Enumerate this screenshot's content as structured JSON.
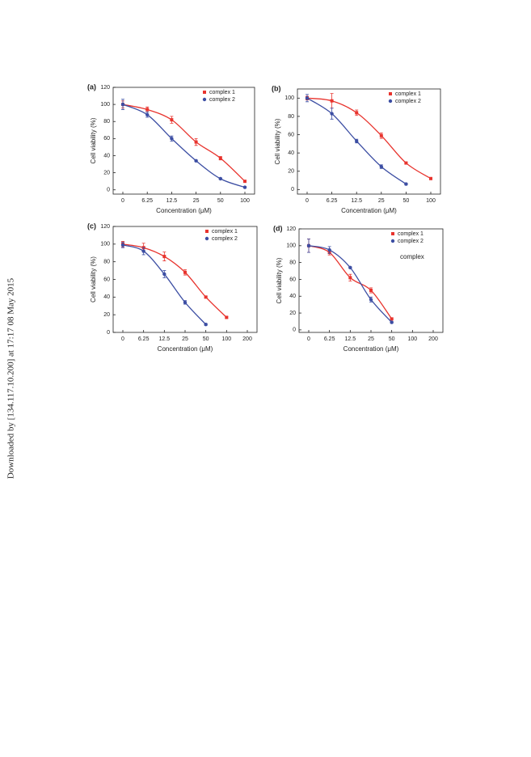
{
  "watermark": "Downloaded by [134.117.10.200] at 17:17 08 May 2015",
  "chart_data": [
    {
      "type": "line",
      "title": "(a)",
      "xlabel": "Concentration (μM)",
      "ylabel": "Cell viability (%)",
      "categories": [
        "0",
        "6.25",
        "12.5",
        "25",
        "50",
        "100"
      ],
      "ylim": [
        -5,
        120
      ],
      "yticks": [
        0,
        20,
        40,
        60,
        80,
        100,
        120
      ],
      "legend": "upper right",
      "series": [
        {
          "name": "complex 1",
          "color": "#e8332d",
          "marker": "square",
          "values": [
            100,
            94,
            82,
            56,
            37,
            10
          ],
          "errors": [
            4,
            3,
            4,
            4,
            2,
            1
          ]
        },
        {
          "name": "complex 2",
          "color": "#3c4ea3",
          "marker": "circle",
          "values": [
            100,
            88,
            60,
            34,
            13,
            3
          ],
          "errors": [
            6,
            3,
            3,
            1,
            1,
            1
          ]
        }
      ]
    },
    {
      "type": "line",
      "title": "(b)",
      "xlabel": "Concentration (μM)",
      "ylabel": "Cell viability (%)",
      "categories": [
        "0",
        "6.25",
        "12.5",
        "25",
        "50",
        "100"
      ],
      "ylim": [
        -5,
        110
      ],
      "yticks": [
        0,
        20,
        40,
        60,
        80,
        100
      ],
      "legend": "upper right",
      "series": [
        {
          "name": "complex 1",
          "color": "#e8332d",
          "marker": "square",
          "values": [
            100,
            97,
            84,
            59,
            29,
            12
          ],
          "errors": [
            2,
            8,
            3,
            3,
            1,
            1
          ]
        },
        {
          "name": "complex 2",
          "color": "#3c4ea3",
          "marker": "circle",
          "values": [
            100,
            83,
            53,
            25,
            6,
            null
          ],
          "errors": [
            4,
            6,
            2,
            2,
            1,
            null
          ]
        }
      ]
    },
    {
      "type": "line",
      "title": "(c)",
      "xlabel": "Concentration (μM)",
      "ylabel": "Cell viability (%)",
      "categories": [
        "0",
        "6.25",
        "12.5",
        "25",
        "50",
        "100",
        "200"
      ],
      "ylim": [
        0,
        120
      ],
      "yticks": [
        0,
        20,
        40,
        60,
        80,
        100,
        120
      ],
      "legend": "upper right",
      "series": [
        {
          "name": "complex 1",
          "color": "#e8332d",
          "marker": "square",
          "values": [
            100,
            96,
            86,
            68,
            40,
            17,
            null
          ],
          "errors": [
            3,
            5,
            5,
            3,
            1,
            1,
            null
          ]
        },
        {
          "name": "complex 2",
          "color": "#3c4ea3",
          "marker": "circle",
          "values": [
            99,
            92,
            66,
            34,
            9,
            null,
            null
          ],
          "errors": [
            3,
            4,
            4,
            2,
            1,
            null,
            null
          ]
        }
      ]
    },
    {
      "type": "line",
      "title": "(d)",
      "xlabel": "Concentration (μM)",
      "ylabel": "Cell viability (%)",
      "annotation": "complex",
      "categories": [
        "0",
        "6.25",
        "12.5",
        "25",
        "50",
        "100",
        "200"
      ],
      "ylim": [
        -3,
        120
      ],
      "yticks": [
        0,
        20,
        40,
        60,
        80,
        100,
        120
      ],
      "legend": "upper right",
      "series": [
        {
          "name": "complex 1",
          "color": "#e8332d",
          "marker": "square",
          "values": [
            100,
            92,
            62,
            47,
            13,
            null,
            null
          ],
          "errors": [
            8,
            3,
            4,
            3,
            1,
            null,
            null
          ]
        },
        {
          "name": "complex 2",
          "color": "#3c4ea3",
          "marker": "circle",
          "values": [
            100,
            95,
            74,
            36,
            9,
            null,
            null
          ],
          "errors": [
            8,
            4,
            1,
            3,
            1,
            null,
            null
          ]
        }
      ]
    }
  ]
}
